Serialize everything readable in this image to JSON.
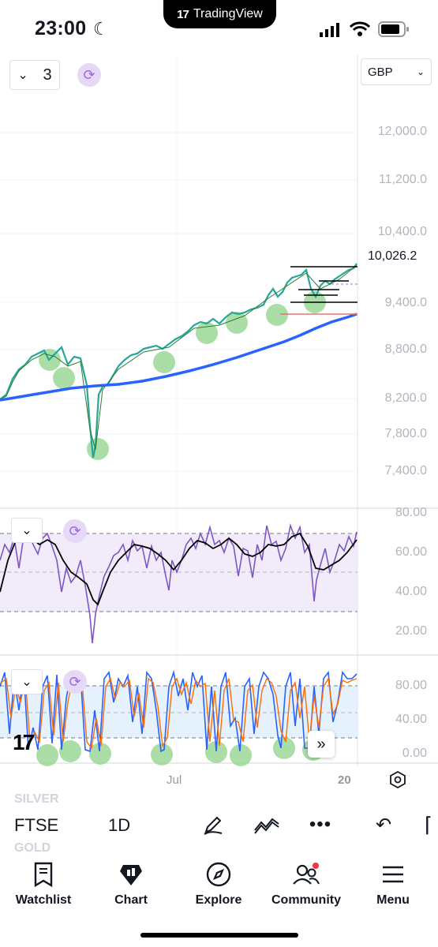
{
  "status_bar": {
    "time": "23:00",
    "app_name": "TradingView"
  },
  "controls": {
    "indicators_count": "3",
    "currency": "GBP"
  },
  "price_axis": {
    "labels": [
      "12,000.0",
      "11,200.0",
      "10,400.0",
      "9,400.0",
      "8,800.0",
      "8,200.0",
      "7,800.0",
      "7,400.0"
    ],
    "last_price": "10,026.2"
  },
  "rsi_axis": {
    "labels": [
      "80.00",
      "60.00",
      "40.00",
      "20.00"
    ]
  },
  "stoch_axis": {
    "labels": [
      "80.00",
      "40.00",
      "0.00"
    ]
  },
  "time_axis": {
    "labels": [
      "Jul",
      "20"
    ]
  },
  "toolbar": {
    "symbol": "FTSE",
    "interval": "1D",
    "faint_top": "SILVER",
    "faint_bottom": "GOLD"
  },
  "tabs": [
    {
      "label": "Watchlist",
      "icon": "watchlist-icon"
    },
    {
      "label": "Chart",
      "icon": "chart-icon"
    },
    {
      "label": "Explore",
      "icon": "compass-icon"
    },
    {
      "label": "Community",
      "icon": "community-icon"
    },
    {
      "label": "Menu",
      "icon": "menu-icon"
    }
  ],
  "colors": {
    "candle_up": "#26a69a",
    "ma_line": "#2962ff",
    "rsi_line": "#7e57c2",
    "stoch_k": "#2962ff",
    "stoch_d": "#ff6d00",
    "highlight": "#8fd18a",
    "accent_purple": "#9c6ade"
  }
}
